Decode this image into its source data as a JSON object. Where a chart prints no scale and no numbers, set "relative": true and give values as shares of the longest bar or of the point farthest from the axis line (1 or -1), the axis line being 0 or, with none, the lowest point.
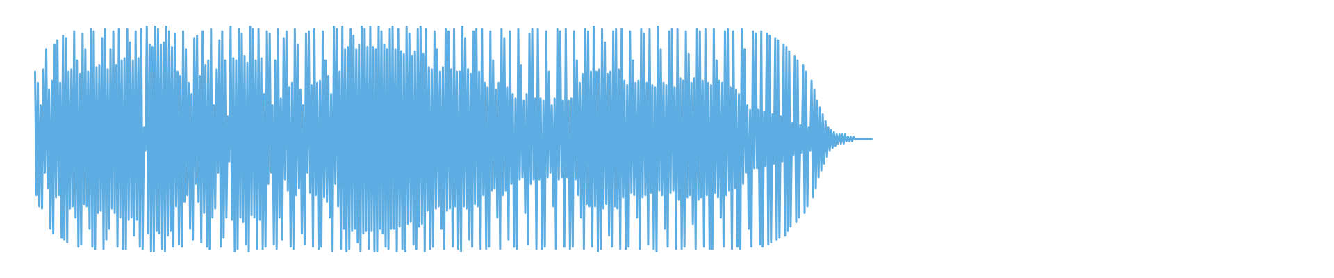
{
  "chart_data": {
    "type": "line",
    "relative": true,
    "color": "#5dade2",
    "categories": [
      null,
      null,
      null,
      null,
      null,
      null,
      null,
      null,
      null,
      null,
      null,
      null,
      null,
      null,
      null,
      null,
      null,
      null,
      null,
      null,
      null,
      null,
      null,
      null,
      null,
      null,
      null,
      null,
      null,
      null,
      null,
      null,
      null,
      null,
      null,
      null,
      null,
      null,
      null,
      null,
      null,
      null,
      null,
      null,
      null,
      null,
      null,
      null,
      null,
      null,
      null,
      null,
      null,
      null,
      null,
      null,
      null,
      null,
      null,
      null,
      null,
      null,
      null,
      null,
      null,
      null,
      null,
      null,
      null,
      null,
      null,
      null,
      null,
      null,
      null,
      null,
      null,
      null,
      null,
      null,
      null,
      null,
      null,
      null,
      null,
      null,
      null,
      null,
      null,
      null,
      null,
      null,
      null,
      null,
      null,
      null,
      null,
      null,
      null,
      null,
      null,
      null,
      null,
      null,
      null,
      null,
      null,
      null,
      null,
      null,
      null,
      null,
      null,
      null,
      null,
      null,
      null,
      null,
      null,
      null,
      null,
      null,
      null,
      null,
      null,
      null,
      null,
      null,
      null,
      null,
      null,
      null,
      null,
      null,
      null,
      null,
      null,
      null,
      null,
      null,
      null,
      null,
      null,
      null,
      null,
      null,
      null,
      null,
      null,
      null,
      null,
      null,
      null,
      null,
      null,
      null,
      null,
      null,
      null,
      null,
      null,
      null,
      null,
      null,
      null,
      null,
      null,
      null,
      null,
      null,
      null,
      null,
      null,
      null,
      null,
      null,
      null,
      null,
      null,
      null,
      null,
      null,
      null,
      null,
      null,
      null,
      null,
      null,
      null,
      null,
      null,
      null,
      null,
      null,
      null,
      null,
      null,
      null,
      null,
      null,
      null,
      null,
      null,
      null,
      null,
      null,
      null,
      null,
      null,
      null,
      null,
      null,
      null,
      null,
      null,
      null,
      null,
      null,
      null,
      null,
      null,
      null,
      null,
      null,
      null,
      null,
      null,
      null,
      null,
      null,
      null,
      null,
      null,
      null,
      null,
      null,
      null,
      null,
      null,
      null,
      null,
      null,
      null,
      null,
      null,
      null,
      null,
      null,
      null,
      null,
      null,
      null,
      null,
      null,
      null,
      null,
      null,
      null,
      null,
      null,
      null,
      null,
      null,
      null,
      null,
      null,
      null,
      null,
      null,
      null,
      null,
      null,
      null,
      null,
      null,
      null,
      null,
      null,
      null,
      null,
      null,
      null,
      null,
      null,
      null,
      null,
      null,
      null,
      null,
      null,
      null,
      null,
      null,
      null,
      null,
      null,
      null,
      null,
      null,
      null,
      null,
      null,
      null,
      null,
      null,
      null,
      null,
      null,
      null,
      null,
      null,
      null,
      null,
      null,
      null,
      null,
      null,
      null,
      null,
      null,
      null,
      null,
      null,
      null,
      null,
      null,
      null,
      null,
      null,
      null,
      null,
      null,
      null,
      null,
      null,
      null,
      null,
      null,
      null,
      null,
      null,
      null,
      null,
      null,
      null,
      null,
      null,
      null,
      null,
      null,
      null,
      null,
      null,
      null,
      null,
      null,
      null,
      null,
      null,
      null,
      null,
      null,
      null,
      null,
      null,
      null,
      null,
      null,
      null,
      null,
      null,
      null,
      null,
      null,
      null,
      null,
      null,
      null,
      null,
      null,
      null,
      null,
      null,
      null,
      null,
      null,
      null,
      null,
      null,
      null,
      null,
      null,
      null,
      null,
      null,
      null,
      null,
      null,
      null,
      null,
      null,
      null,
      null,
      null,
      null,
      null,
      null,
      null,
      null,
      null,
      null,
      null,
      null,
      null,
      null,
      null,
      null,
      null,
      null,
      null,
      null,
      null,
      null,
      null,
      null,
      null,
      null,
      null,
      null,
      null,
      null,
      null,
      null,
      null,
      null,
      null,
      null,
      null,
      null,
      null,
      null,
      null,
      null,
      null,
      null,
      null,
      null,
      null,
      null,
      null,
      null,
      null,
      null,
      null,
      null,
      null,
      null,
      null,
      null,
      null,
      null,
      null,
      null,
      null,
      null,
      null,
      null,
      null,
      null,
      null,
      null,
      null,
      null,
      null,
      null,
      null,
      null,
      null,
      null,
      null,
      null,
      null,
      null,
      null,
      null,
      null,
      null,
      null,
      null,
      null,
      null,
      null,
      null,
      null,
      null,
      null,
      null,
      null,
      null,
      null,
      null,
      null,
      null,
      null,
      null,
      null,
      null,
      null,
      null,
      null,
      null,
      null,
      null,
      null,
      null,
      null,
      null,
      null,
      null,
      null,
      null,
      null,
      null,
      null,
      null,
      null,
      null,
      null,
      null,
      null,
      null,
      null,
      null,
      null,
      null,
      null,
      null,
      null,
      null,
      null,
      null,
      null,
      null,
      null,
      null,
      null,
      null,
      null,
      null,
      null,
      null,
      null,
      null,
      null,
      null,
      null,
      null,
      null,
      null,
      null,
      null,
      null,
      null,
      null,
      null,
      null,
      null,
      null,
      null,
      null,
      null,
      null,
      null,
      null,
      null,
      null,
      null,
      null,
      null,
      null,
      null,
      null,
      null,
      null,
      null,
      null,
      null,
      null,
      null,
      null,
      null,
      null,
      null,
      null,
      null,
      null,
      null,
      null,
      null,
      null
    ],
    "values": [
      0.8,
      0.25,
      0.75,
      0.2,
      0.65,
      0.19,
      0.81,
      0.35,
      0.9,
      0.28,
      0.72,
      0.1,
      0.76,
      0.08,
      0.92,
      0.24,
      0.94,
      0.25,
      0.75,
      0.06,
      0.96,
      0.05,
      0.95,
      0.04,
      0.8,
      0.19,
      0.81,
      0.2,
      0.98,
      0.15,
      0.85,
      0.02,
      0.79,
      0.03,
      0.97,
      0.21,
      0.9,
      0.2,
      0.8,
      0.1,
      0.99,
      0.02,
      0.98,
      0.01,
      0.82,
      0.17,
      0.83,
      0.18,
      0.95,
      0.01,
      0.99,
      0.05,
      0.81,
      0.1,
      0.9,
      0.19,
      0.98,
      0.17,
      0.83,
      0.02,
      0.99,
      0.15,
      0.85,
      0.01,
      0.86,
      0.01,
      0.99,
      0.14,
      0.93,
      0.15,
      0.85,
      0.07,
      0.98,
      0.14,
      0.86,
      0.02,
      0.99,
      0.01,
      0.55,
      0.45,
      1.0,
      0.08,
      0.92,
      0.0,
      0.91,
      0.0,
      1.0,
      0.09,
      0.99,
      0.08,
      0.92,
      0.01,
      0.93,
      0.0,
      1.0,
      0.07,
      0.98,
      0.09,
      0.91,
      0.02,
      0.97,
      0.2,
      0.8,
      0.03,
      0.78,
      0.02,
      0.98,
      0.22,
      0.9,
      0.25,
      0.75,
      0.1,
      0.7,
      0.05,
      0.95,
      0.3,
      0.96,
      0.22,
      0.78,
      0.04,
      0.98,
      0.17,
      0.83,
      0.02,
      0.85,
      0.01,
      0.99,
      0.15,
      0.65,
      0.19,
      0.81,
      0.35,
      0.94,
      0.02,
      0.98,
      0.06,
      0.85,
      0.15,
      0.6,
      0.4,
      1.0,
      0.14,
      0.86,
      0.0,
      0.85,
      0.01,
      0.99,
      0.15,
      0.97,
      0.13,
      0.87,
      0.03,
      0.84,
      0.0,
      1.0,
      0.16,
      0.99,
      0.15,
      0.85,
      0.01,
      0.99,
      0.14,
      0.86,
      0.01,
      0.7,
      0.02,
      0.98,
      0.3,
      0.97,
      0.35,
      0.65,
      0.03,
      0.85,
      0.01,
      0.99,
      0.15,
      0.68,
      0.05,
      0.95,
      0.32,
      0.98,
      0.27,
      0.73,
      0.02,
      0.75,
      0.01,
      0.99,
      0.25,
      0.92,
      0.28,
      0.72,
      0.08,
      0.65,
      0.03,
      0.97,
      0.35,
      0.98,
      0.26,
      0.74,
      0.02,
      0.99,
      0.25,
      0.75,
      0.01,
      0.76,
      0.02,
      0.98,
      0.24,
      0.85,
      0.22,
      0.78,
      0.15,
      0.7,
      0.0,
      1.0,
      0.3,
      0.99,
      0.2,
      0.8,
      0.01,
      1.0,
      0.1,
      0.9,
      0.0,
      0.91,
      0.01,
      0.99,
      0.09,
      0.96,
      0.1,
      0.9,
      0.04,
      0.92,
      0.0,
      1.0,
      0.08,
      0.99,
      0.09,
      0.91,
      0.01,
      1.0,
      0.09,
      0.91,
      0.0,
      0.9,
      0.0,
      1.0,
      0.1,
      0.98,
      0.08,
      0.92,
      0.02,
      0.9,
      0.01,
      0.99,
      0.1,
      1.0,
      0.1,
      0.9,
      0.0,
      0.99,
      0.11,
      0.89,
      0.01,
      0.88,
      0.0,
      1.0,
      0.12,
      0.97,
      0.13,
      0.87,
      0.03,
      0.89,
      0.01,
      0.99,
      0.11,
      1.0,
      0.12,
      0.88,
      0.0,
      0.99,
      0.18,
      0.82,
      0.01,
      0.81,
      0.02,
      0.98,
      0.19,
      0.9,
      0.2,
      0.8,
      0.1,
      0.82,
      0.01,
      0.99,
      0.18,
      0.98,
      0.19,
      0.81,
      0.02,
      0.99,
      0.2,
      0.8,
      0.01,
      0.8,
      0.0,
      1.0,
      0.2,
      0.95,
      0.19,
      0.81,
      0.05,
      0.79,
      0.02,
      0.98,
      0.21,
      0.99,
      0.2,
      0.8,
      0.01,
      0.99,
      0.25,
      0.75,
      0.01,
      0.73,
      0.02,
      0.98,
      0.27,
      0.85,
      0.28,
      0.72,
      0.15,
      0.75,
      0.01,
      0.99,
      0.25,
      0.95,
      0.27,
      0.73,
      0.05,
      0.98,
      0.3,
      0.7,
      0.02,
      0.68,
      0.01,
      0.99,
      0.32,
      0.83,
      0.33,
      0.67,
      0.17,
      0.7,
      0.03,
      0.97,
      0.3,
      0.99,
      0.32,
      0.68,
      0.01,
      0.99,
      0.32,
      0.68,
      0.01,
      0.67,
      0.02,
      0.98,
      0.33,
      0.8,
      0.35,
      0.65,
      0.2,
      0.68,
      0.01,
      0.99,
      0.32,
      0.98,
      0.33,
      0.67,
      0.02,
      0.99,
      0.33,
      0.67,
      0.01,
      0.68,
      0.02,
      0.98,
      0.32,
      0.85,
      0.25,
      0.75,
      0.15,
      0.79,
      0.01,
      0.99,
      0.21,
      0.98,
      0.2,
      0.8,
      0.02,
      1.0,
      0.2,
      0.8,
      0.0,
      0.81,
      0.01,
      0.99,
      0.19,
      0.93,
      0.21,
      0.79,
      0.07,
      0.8,
      0.02,
      0.98,
      0.2,
      0.99,
      0.19,
      0.81,
      0.01,
      0.99,
      0.24,
      0.76,
      0.01,
      0.74,
      0.02,
      0.98,
      0.26,
      0.85,
      0.25,
      0.75,
      0.15,
      0.76,
      0.01,
      0.99,
      0.24,
      0.97,
      0.25,
      0.75,
      0.03,
      0.99,
      0.26,
      0.74,
      0.01,
      0.73,
      0.0,
      1.0,
      0.27,
      0.9,
      0.25,
      0.75,
      0.1,
      0.74,
      0.02,
      0.98,
      0.26,
      0.99,
      0.27,
      0.73,
      0.01,
      0.99,
      0.23,
      0.77,
      0.01,
      0.76,
      0.02,
      0.98,
      0.24,
      0.88,
      0.25,
      0.75,
      0.12,
      0.77,
      0.01,
      0.99,
      0.23,
      0.98,
      0.24,
      0.76,
      0.02,
      0.99,
      0.25,
      0.75,
      0.01,
      0.74,
      0.01,
      0.99,
      0.26,
      0.85,
      0.24,
      0.76,
      0.15,
      0.75,
      0.02,
      0.98,
      0.25,
      0.99,
      0.27,
      0.73,
      0.01,
      0.98,
      0.28,
      0.72,
      0.02,
      0.7,
      0.01,
      0.99,
      0.3,
      0.9,
      0.35,
      0.65,
      0.1,
      0.63,
      0.02,
      0.98,
      0.37,
      0.97,
      0.37,
      0.63,
      0.03,
      0.98,
      0.02,
      0.62,
      0.38,
      0.97,
      0.03,
      0.96,
      0.04,
      0.61,
      0.39,
      0.95,
      0.05,
      0.94,
      0.06,
      0.6,
      0.4,
      0.92,
      0.07,
      0.91,
      0.09,
      0.89,
      0.11,
      0.57,
      0.43,
      0.87,
      0.13,
      0.85,
      0.15,
      0.56,
      0.44,
      0.83,
      0.17,
      0.8,
      0.2,
      0.55,
      0.45,
      0.76,
      0.24,
      0.72,
      0.28,
      0.67,
      0.33,
      0.64,
      0.36,
      0.61,
      0.39,
      0.58,
      0.42,
      0.55,
      0.45,
      0.54,
      0.46,
      0.53,
      0.47,
      0.52,
      0.48,
      0.52,
      0.48,
      0.52,
      0.48,
      0.52,
      0.49,
      0.51,
      0.49,
      0.51,
      0.49,
      0.51,
      0.5,
      0.5,
      0.5,
      0.5,
      0.5,
      0.5,
      0.5,
      0.5,
      0.5,
      0.5,
      0.5,
      0.5,
      0.5
    ]
  }
}
